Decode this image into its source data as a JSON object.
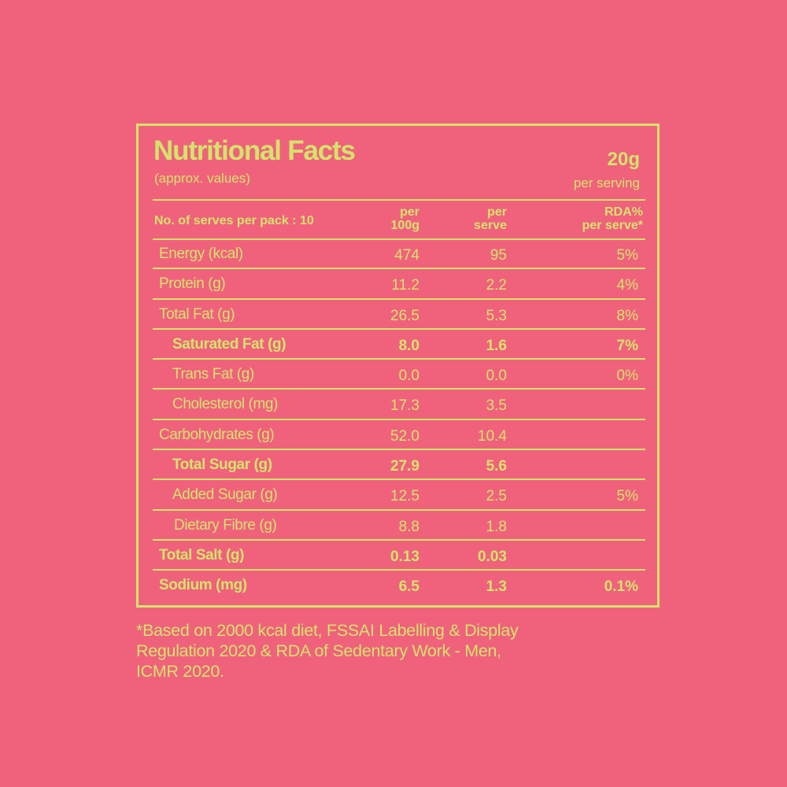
{
  "header": {
    "title": "Nutritional Facts",
    "subtitle": "(approx. values)",
    "serving_amount": "20g",
    "serving_label": "per serving"
  },
  "columns": {
    "serves_per_pack": "No. of serves per pack : 10",
    "per_100g_line1": "per",
    "per_100g_line2": "100g",
    "per_serve_line1": "per",
    "per_serve_line2": "serve",
    "rda_line1": "RDA%",
    "rda_line2": "per serve*"
  },
  "rows": [
    {
      "label": "Energy (kcal)",
      "per_100g": "474",
      "per_serve": "95",
      "rda": "5%",
      "indent": 0,
      "bold": false
    },
    {
      "label": "Protein (g)",
      "per_100g": "11.2",
      "per_serve": "2.2",
      "rda": "4%",
      "indent": 0,
      "bold": false
    },
    {
      "label": "Total Fat (g)",
      "per_100g": "26.5",
      "per_serve": "5.3",
      "rda": "8%",
      "indent": 0,
      "bold": false
    },
    {
      "label": "Saturated Fat (g)",
      "per_100g": "8.0",
      "per_serve": "1.6",
      "rda": "7%",
      "indent": 1,
      "bold": true
    },
    {
      "label": "Trans Fat (g)",
      "per_100g": "0.0",
      "per_serve": "0.0",
      "rda": "0%",
      "indent": 1,
      "bold": false
    },
    {
      "label": "Cholesterol (mg)",
      "per_100g": "17.3",
      "per_serve": "3.5",
      "rda": "",
      "indent": 1,
      "bold": false
    },
    {
      "label": "Carbohydrates (g)",
      "per_100g": "52.0",
      "per_serve": "10.4",
      "rda": "",
      "indent": 0,
      "bold": false
    },
    {
      "label": "Total Sugar (g)",
      "per_100g": "27.9",
      "per_serve": "5.6",
      "rda": "",
      "indent": 1,
      "bold": true
    },
    {
      "label": "Added Sugar (g)",
      "per_100g": "12.5",
      "per_serve": "2.5",
      "rda": "5%",
      "indent": 1,
      "bold": false
    },
    {
      "label": "Dietary Fibre (g)",
      "per_100g": "8.8",
      "per_serve": "1.8",
      "rda": "",
      "indent": 2,
      "bold": false
    },
    {
      "label": "Total Salt (g)",
      "per_100g": "0.13",
      "per_serve": "0.03",
      "rda": "",
      "indent": 0,
      "bold": true
    },
    {
      "label": "Sodium (mg)",
      "per_100g": "6.5",
      "per_serve": "1.3",
      "rda": "0.1%",
      "indent": 0,
      "bold": true
    }
  ],
  "footnote": {
    "line1": "*Based on 2000 kcal diet, FSSAI Labelling & Display",
    "line2": "Regulation 2020 & RDA of Sedentary Work - Men,",
    "line3": "ICMR 2020."
  },
  "colors": {
    "background": "#F0627C",
    "foreground": "#D4E36B"
  }
}
